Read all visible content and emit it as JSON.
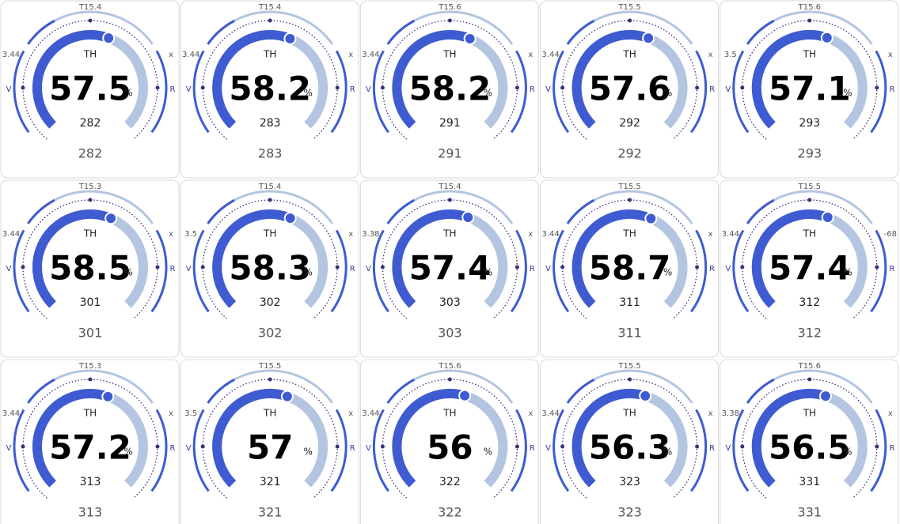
{
  "gauges": [
    {
      "top": "T15.4",
      "left": 3.44,
      "right": "x",
      "v": "V",
      "r": "R",
      "title": "TH",
      "value": 57.5,
      "unit": "%",
      "sub": 282,
      "footer": 282
    },
    {
      "top": "T15.4",
      "left": 3.44,
      "right": "x",
      "v": "V",
      "r": "R",
      "title": "TH",
      "value": 58.2,
      "unit": "%",
      "sub": 283,
      "footer": 283
    },
    {
      "top": "T15.6",
      "left": 3.44,
      "right": "x",
      "v": "V",
      "r": "R",
      "title": "TH",
      "value": 58.2,
      "unit": "%",
      "sub": 291,
      "footer": 291
    },
    {
      "top": "T15.5",
      "left": 3.44,
      "right": "x",
      "v": "V",
      "r": "R",
      "title": "TH",
      "value": 57.6,
      "unit": "%",
      "sub": 292,
      "footer": 292
    },
    {
      "top": "T15.6",
      "left": 3.5,
      "right": "x",
      "v": "V",
      "r": "R",
      "title": "TH",
      "value": 57.1,
      "unit": "%",
      "sub": 293,
      "footer": 293
    },
    {
      "top": "T15.3",
      "left": 3.44,
      "right": "x",
      "v": "V",
      "r": "R",
      "title": "TH",
      "value": 58.5,
      "unit": "%",
      "sub": 301,
      "footer": 301
    },
    {
      "top": "T15.4",
      "left": 3.5,
      "right": "x",
      "v": "V",
      "r": "R",
      "title": "TH",
      "value": 58.3,
      "unit": "%",
      "sub": 302,
      "footer": 302
    },
    {
      "top": "T15.4",
      "left": 3.38,
      "right": "x",
      "v": "V",
      "r": "R",
      "title": "TH",
      "value": 57.4,
      "unit": "%",
      "sub": 303,
      "footer": 303
    },
    {
      "top": "T15.5",
      "left": 3.44,
      "right": "x",
      "v": "V",
      "r": "R",
      "title": "TH",
      "value": 58.7,
      "unit": "%",
      "sub": 311,
      "footer": 311
    },
    {
      "top": "T15.5",
      "left": 3.44,
      "right": -68,
      "v": "V",
      "r": "R",
      "title": "TH",
      "value": 57.4,
      "unit": "%",
      "sub": 312,
      "footer": 312
    },
    {
      "top": "T15.3",
      "left": 3.44,
      "right": "x",
      "v": "V",
      "r": "R",
      "title": "TH",
      "value": 57.2,
      "unit": "%",
      "sub": 313,
      "footer": 313
    },
    {
      "top": "T15.5",
      "left": 3.5,
      "right": "x",
      "v": "V",
      "r": "R",
      "title": "TH",
      "value": 57,
      "unit": "%",
      "sub": 321,
      "footer": 321
    },
    {
      "top": "T15.6",
      "left": 3.44,
      "right": "x",
      "v": "V",
      "r": "R",
      "title": "TH",
      "value": 56,
      "unit": "%",
      "sub": 322,
      "footer": 322
    },
    {
      "top": "T15.5",
      "left": 3.44,
      "right": "x",
      "v": "V",
      "r": "R",
      "title": "TH",
      "value": 56.3,
      "unit": "%",
      "sub": 323,
      "footer": 323
    },
    {
      "top": "T15.6",
      "left": 3.38,
      "right": "x",
      "v": "V",
      "r": "R",
      "title": "TH",
      "value": 56.5,
      "unit": "%",
      "sub": 331,
      "footer": 331
    }
  ]
}
